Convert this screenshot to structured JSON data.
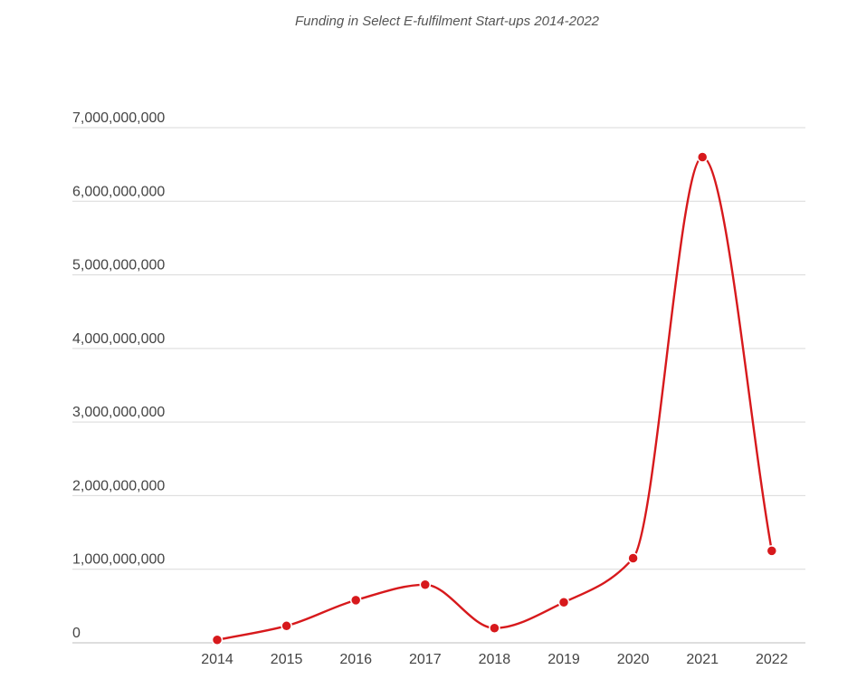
{
  "chart_data": {
    "type": "line",
    "title": "Funding in Select E-fulfilment Start-ups 2014-2022",
    "xlabel": "",
    "ylabel": "",
    "categories": [
      "2014",
      "2015",
      "2016",
      "2017",
      "2018",
      "2019",
      "2020",
      "2021",
      "2022"
    ],
    "series": [
      {
        "values": [
          40000000,
          230000000,
          580000000,
          790000000,
          200000000,
          550000000,
          1150000000,
          6600000000,
          1250000000
        ],
        "color": "#d7191c"
      }
    ],
    "ylim": [
      0,
      7000000000
    ],
    "yticks": [
      0,
      1000000000,
      2000000000,
      3000000000,
      4000000000,
      5000000000,
      6000000000,
      7000000000
    ],
    "ytick_labels": [
      "0",
      "1,000,000,000",
      "2,000,000,000",
      "3,000,000,000",
      "4,000,000,000",
      "5,000,000,000",
      "6,000,000,000",
      "7,000,000,000"
    ],
    "grid": true,
    "legend": "none",
    "smooth": true,
    "markers": true
  }
}
